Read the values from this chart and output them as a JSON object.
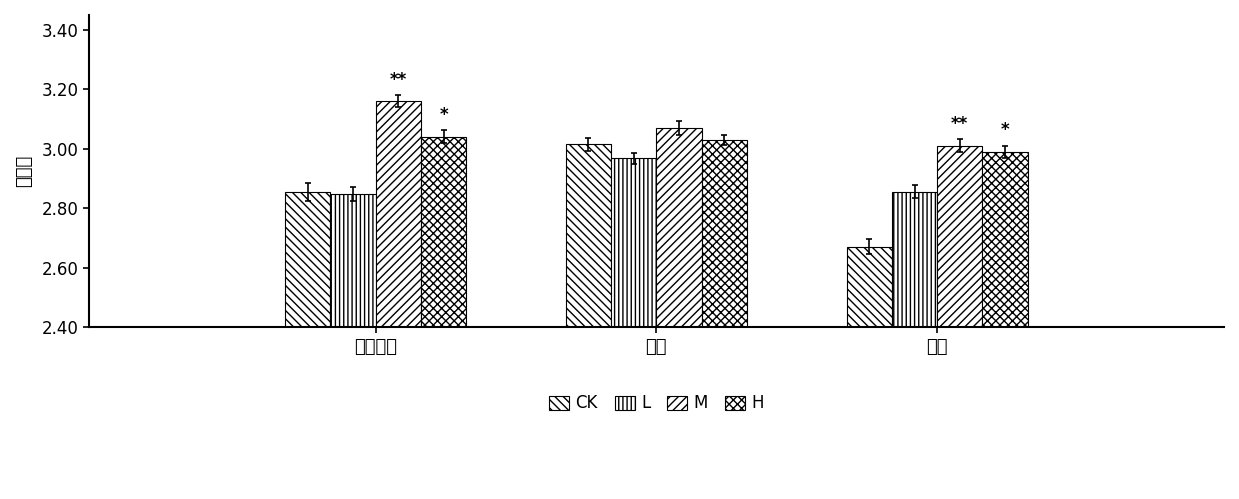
{
  "groups": [
    "十二指肠",
    "空肠",
    "回肠"
  ],
  "series": [
    "CK",
    "L",
    "M",
    "H"
  ],
  "values": [
    [
      2.855,
      2.848,
      3.16,
      3.04
    ],
    [
      3.015,
      2.968,
      3.07,
      3.03
    ],
    [
      2.67,
      2.855,
      3.01,
      2.99
    ]
  ],
  "errors": [
    [
      0.03,
      0.025,
      0.02,
      0.022
    ],
    [
      0.022,
      0.018,
      0.022,
      0.018
    ],
    [
      0.025,
      0.022,
      0.022,
      0.02
    ]
  ],
  "significance": [
    [
      "",
      "",
      "**",
      "*"
    ],
    [
      "",
      "",
      "",
      ""
    ],
    [
      "",
      "",
      "**",
      "*"
    ]
  ],
  "ylabel": "绒腔比",
  "ylim": [
    2.4,
    3.45
  ],
  "yticks": [
    2.4,
    2.6,
    2.8,
    3.0,
    3.2,
    3.4
  ],
  "bar_width": 0.15,
  "legend_labels": [
    "CK",
    "L",
    "M",
    "H"
  ],
  "background_color": "#ffffff",
  "axis_fontsize": 13,
  "tick_fontsize": 12,
  "legend_fontsize": 12,
  "sig_fontsize": 12,
  "group_positions": [
    0.42,
    1.35,
    2.28
  ]
}
